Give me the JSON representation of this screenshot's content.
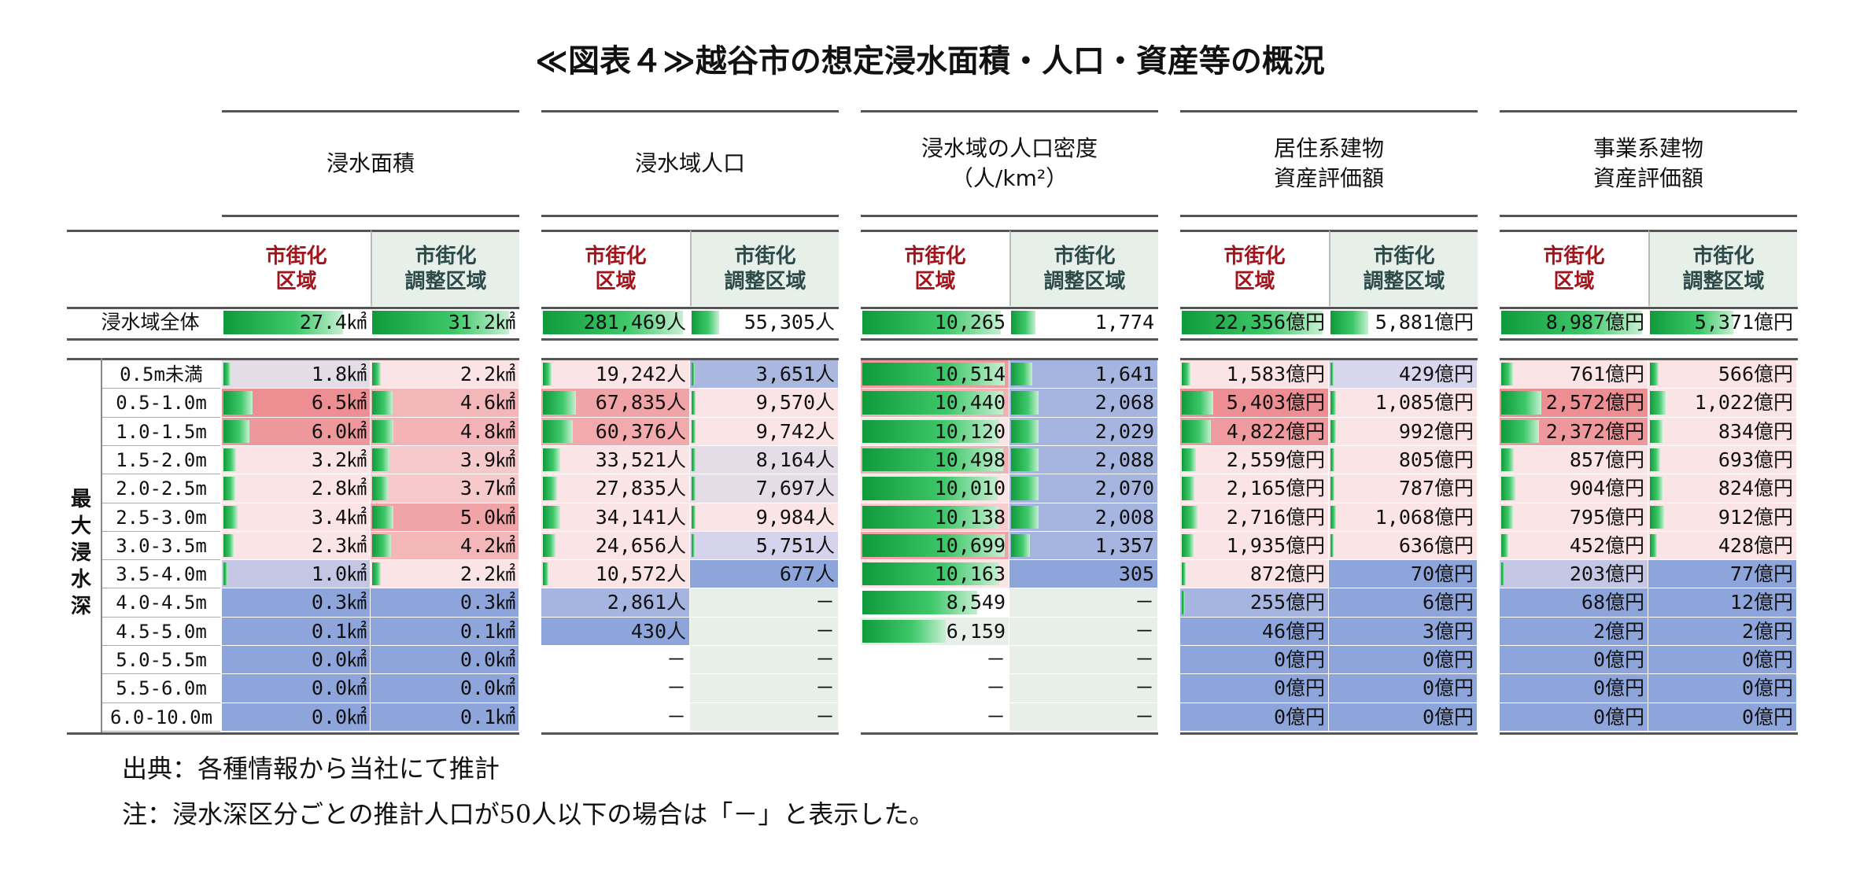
{
  "title": "≪図表４≫越谷市の想定浸水面積・人口・資産等の概況",
  "groups": [
    {
      "label": "浸水面積",
      "label2": ""
    },
    {
      "label": "浸水域人口",
      "label2": ""
    },
    {
      "label": "浸水域の人口密度",
      "label2": "（人/km²）"
    },
    {
      "label": "居住系建物",
      "label2": "資産評価額"
    },
    {
      "label": "事業系建物",
      "label2": "資産評価額"
    }
  ],
  "sub_headers": {
    "urban": [
      "市街化",
      "区域"
    ],
    "adjust": [
      "市街化",
      "調整区域"
    ]
  },
  "total_label": "浸水域全体",
  "vertical_label": "最大浸水深",
  "total_row": [
    {
      "v": "27.4㎢",
      "f": 0.83,
      "c": "#ffffff"
    },
    {
      "v": "31.2㎢",
      "f": 0.95,
      "c": "#ffffff"
    },
    {
      "v": "281,469人",
      "f": 0.97,
      "c": "#ffffff"
    },
    {
      "v": "55,305人",
      "f": 0.19,
      "c": "#ffffff"
    },
    {
      "v": "10,265",
      "f": 0.96,
      "c": "#ffffff"
    },
    {
      "v": "1,774",
      "f": 0.17,
      "c": "#ffffff"
    },
    {
      "v": "22,356億円",
      "f": 0.98,
      "c": "#ffffff"
    },
    {
      "v": "5,881億円",
      "f": 0.26,
      "c": "#ffffff"
    },
    {
      "v": "8,987億円",
      "f": 0.98,
      "c": "#ffffff"
    },
    {
      "v": "5,371億円",
      "f": 0.58,
      "c": "#ffffff"
    }
  ],
  "depth_rows": [
    {
      "label": "0.5m未満",
      "cells": [
        {
          "v": "1.8㎢",
          "f": 0.05,
          "c": "#e4dde8"
        },
        {
          "v": "2.2㎢",
          "f": 0.06,
          "c": "#fbe4e6"
        },
        {
          "v": "19,242人",
          "f": 0.06,
          "c": "#fbe4e6"
        },
        {
          "v": "3,651人",
          "f": 0.01,
          "c": "#aab8e0"
        },
        {
          "v": "10,514",
          "f": 0.99,
          "c": "#ef9a9e"
        },
        {
          "v": "1,641",
          "f": 0.15,
          "c": "#a6b4e0"
        },
        {
          "v": "1,583億円",
          "f": 0.06,
          "c": "#fbe4e6"
        },
        {
          "v": "429億円",
          "f": 0.02,
          "c": "#d8d6ec"
        },
        {
          "v": "761億円",
          "f": 0.08,
          "c": "#fbe4e6"
        },
        {
          "v": "566億円",
          "f": 0.06,
          "c": "#fbe4e6"
        }
      ]
    },
    {
      "label": "0.5-1.0m",
      "cells": [
        {
          "v": "6.5㎢",
          "f": 0.2,
          "c": "#ec8e92"
        },
        {
          "v": "4.6㎢",
          "f": 0.14,
          "c": "#f3b7ba"
        },
        {
          "v": "67,835人",
          "f": 0.23,
          "c": "#f0a4a7"
        },
        {
          "v": "9,570人",
          "f": 0.03,
          "c": "#fbe4e6"
        },
        {
          "v": "10,440",
          "f": 0.98,
          "c": "#f2b2b5"
        },
        {
          "v": "2,068",
          "f": 0.19,
          "c": "#a6b4e0"
        },
        {
          "v": "5,403億円",
          "f": 0.22,
          "c": "#ec8e92"
        },
        {
          "v": "1,085億円",
          "f": 0.04,
          "c": "#fbe4e6"
        },
        {
          "v": "2,572億円",
          "f": 0.28,
          "c": "#ec8e92"
        },
        {
          "v": "1,022億円",
          "f": 0.11,
          "c": "#fbe4e6"
        }
      ]
    },
    {
      "label": "1.0-1.5m",
      "cells": [
        {
          "v": "6.0㎢",
          "f": 0.18,
          "c": "#ee989c"
        },
        {
          "v": "4.8㎢",
          "f": 0.15,
          "c": "#f3b2b5"
        },
        {
          "v": "60,376人",
          "f": 0.21,
          "c": "#f2aaad"
        },
        {
          "v": "9,742人",
          "f": 0.03,
          "c": "#fbe4e6"
        },
        {
          "v": "10,120",
          "f": 0.95,
          "c": "#fbe4e6"
        },
        {
          "v": "2,029",
          "f": 0.19,
          "c": "#a6b4e0"
        },
        {
          "v": "4,822億円",
          "f": 0.2,
          "c": "#ef9a9e"
        },
        {
          "v": "992億円",
          "f": 0.04,
          "c": "#fbe4e6"
        },
        {
          "v": "2,372億円",
          "f": 0.26,
          "c": "#ee989c"
        },
        {
          "v": "834億円",
          "f": 0.09,
          "c": "#fbe4e6"
        }
      ]
    },
    {
      "label": "1.5-2.0m",
      "cells": [
        {
          "v": "3.2㎢",
          "f": 0.09,
          "c": "#fbe4e6"
        },
        {
          "v": "3.9㎢",
          "f": 0.12,
          "c": "#f6c9cb"
        },
        {
          "v": "33,521人",
          "f": 0.12,
          "c": "#fbe4e6"
        },
        {
          "v": "8,164人",
          "f": 0.03,
          "c": "#e4dde8"
        },
        {
          "v": "10,498",
          "f": 0.98,
          "c": "#f2b2b5"
        },
        {
          "v": "2,088",
          "f": 0.19,
          "c": "#a6b4e0"
        },
        {
          "v": "2,559億円",
          "f": 0.1,
          "c": "#fbe4e6"
        },
        {
          "v": "805億円",
          "f": 0.03,
          "c": "#fbe4e6"
        },
        {
          "v": "857億円",
          "f": 0.09,
          "c": "#fbe4e6"
        },
        {
          "v": "693億円",
          "f": 0.07,
          "c": "#fbe4e6"
        }
      ]
    },
    {
      "label": "2.0-2.5m",
      "cells": [
        {
          "v": "2.8㎢",
          "f": 0.08,
          "c": "#fbe4e6"
        },
        {
          "v": "3.7㎢",
          "f": 0.11,
          "c": "#f6c9cb"
        },
        {
          "v": "27,835人",
          "f": 0.1,
          "c": "#fbe4e6"
        },
        {
          "v": "7,697人",
          "f": 0.03,
          "c": "#e4dde8"
        },
        {
          "v": "10,010",
          "f": 0.94,
          "c": "#fbe4e6"
        },
        {
          "v": "2,070",
          "f": 0.19,
          "c": "#a6b4e0"
        },
        {
          "v": "2,165億円",
          "f": 0.09,
          "c": "#fbe4e6"
        },
        {
          "v": "787億円",
          "f": 0.03,
          "c": "#fbe4e6"
        },
        {
          "v": "904億円",
          "f": 0.1,
          "c": "#fbe4e6"
        },
        {
          "v": "824億円",
          "f": 0.09,
          "c": "#fbe4e6"
        }
      ]
    },
    {
      "label": "2.5-3.0m",
      "cells": [
        {
          "v": "3.4㎢",
          "f": 0.1,
          "c": "#fbe4e6"
        },
        {
          "v": "5.0㎢",
          "f": 0.15,
          "c": "#f0a4a7"
        },
        {
          "v": "34,141人",
          "f": 0.12,
          "c": "#fbe4e6"
        },
        {
          "v": "9,984人",
          "f": 0.03,
          "c": "#fbe4e6"
        },
        {
          "v": "10,138",
          "f": 0.95,
          "c": "#f7cdd0"
        },
        {
          "v": "2,008",
          "f": 0.19,
          "c": "#a6b4e0"
        },
        {
          "v": "2,716億円",
          "f": 0.11,
          "c": "#fbe4e6"
        },
        {
          "v": "1,068億円",
          "f": 0.04,
          "c": "#fbe4e6"
        },
        {
          "v": "795億円",
          "f": 0.08,
          "c": "#fbe4e6"
        },
        {
          "v": "912億円",
          "f": 0.1,
          "c": "#fbe4e6"
        }
      ]
    },
    {
      "label": "3.0-3.5m",
      "cells": [
        {
          "v": "2.3㎢",
          "f": 0.07,
          "c": "#fbe4e6"
        },
        {
          "v": "4.2㎢",
          "f": 0.13,
          "c": "#f3b7ba"
        },
        {
          "v": "24,656人",
          "f": 0.09,
          "c": "#fbe4e6"
        },
        {
          "v": "5,751人",
          "f": 0.02,
          "c": "#d6d4ec"
        },
        {
          "v": "10,699",
          "f": 0.99,
          "c": "#f0a4a7"
        },
        {
          "v": "1,357",
          "f": 0.13,
          "c": "#a6b4e0"
        },
        {
          "v": "1,935億円",
          "f": 0.08,
          "c": "#fbe4e6"
        },
        {
          "v": "636億円",
          "f": 0.02,
          "c": "#fbe4e6"
        },
        {
          "v": "452億円",
          "f": 0.05,
          "c": "#fbe4e6"
        },
        {
          "v": "428億円",
          "f": 0.05,
          "c": "#fbe4e6"
        }
      ]
    },
    {
      "label": "3.5-4.0m",
      "cells": [
        {
          "v": "1.0㎢",
          "f": 0.03,
          "c": "#c4c6e4"
        },
        {
          "v": "2.2㎢",
          "f": 0.06,
          "c": "#fbe4e6"
        },
        {
          "v": "10,572人",
          "f": 0.04,
          "c": "#fbe4e6"
        },
        {
          "v": "677人",
          "f": 0,
          "c": "#8ea5dc"
        },
        {
          "v": "10,163",
          "f": 0.95,
          "c": "#fbe4e6"
        },
        {
          "v": "305",
          "f": 0,
          "c": "#8ea5dc"
        },
        {
          "v": "872億円",
          "f": 0.03,
          "c": "#fbe4e6"
        },
        {
          "v": "70億円",
          "f": 0,
          "c": "#8ea5dc"
        },
        {
          "v": "203億円",
          "f": 0.02,
          "c": "#c4c6e4"
        },
        {
          "v": "77億円",
          "f": 0,
          "c": "#8ea5dc"
        }
      ]
    },
    {
      "label": "4.0-4.5m",
      "cells": [
        {
          "v": "0.3㎢",
          "f": 0,
          "c": "#8ea5dc"
        },
        {
          "v": "0.3㎢",
          "f": 0,
          "c": "#8ea5dc"
        },
        {
          "v": "2,861人",
          "f": 0,
          "c": "#a6b4e0"
        },
        {
          "v": "－",
          "f": 0,
          "c": "#e8efe9"
        },
        {
          "v": "8,549",
          "f": 0.8,
          "c": "#ffffff"
        },
        {
          "v": "－",
          "f": 0,
          "c": "#e8efe9"
        },
        {
          "v": "255億円",
          "f": 0.01,
          "c": "#a6b4e0"
        },
        {
          "v": "6億円",
          "f": 0,
          "c": "#8ea5dc"
        },
        {
          "v": "68億円",
          "f": 0,
          "c": "#8ea5dc"
        },
        {
          "v": "12億円",
          "f": 0,
          "c": "#8ea5dc"
        }
      ]
    },
    {
      "label": "4.5-5.0m",
      "cells": [
        {
          "v": "0.1㎢",
          "f": 0,
          "c": "#8ea5dc"
        },
        {
          "v": "0.1㎢",
          "f": 0,
          "c": "#8ea5dc"
        },
        {
          "v": "430人",
          "f": 0,
          "c": "#8ea5dc"
        },
        {
          "v": "－",
          "f": 0,
          "c": "#e8efe9"
        },
        {
          "v": "6,159",
          "f": 0.58,
          "c": "#e8efe9"
        },
        {
          "v": "－",
          "f": 0,
          "c": "#e8efe9"
        },
        {
          "v": "46億円",
          "f": 0,
          "c": "#8ea5dc"
        },
        {
          "v": "3億円",
          "f": 0,
          "c": "#8ea5dc"
        },
        {
          "v": "2億円",
          "f": 0,
          "c": "#8ea5dc"
        },
        {
          "v": "2億円",
          "f": 0,
          "c": "#8ea5dc"
        }
      ]
    },
    {
      "label": "5.0-5.5m",
      "cells": [
        {
          "v": "0.0㎢",
          "f": 0,
          "c": "#8ea5dc"
        },
        {
          "v": "0.0㎢",
          "f": 0,
          "c": "#8ea5dc"
        },
        {
          "v": "－",
          "f": 0,
          "c": "#ffffff"
        },
        {
          "v": "－",
          "f": 0,
          "c": "#e8efe9"
        },
        {
          "v": "－",
          "f": 0,
          "c": "#ffffff"
        },
        {
          "v": "－",
          "f": 0,
          "c": "#e8efe9"
        },
        {
          "v": "0億円",
          "f": 0,
          "c": "#8ea5dc"
        },
        {
          "v": "0億円",
          "f": 0,
          "c": "#8ea5dc"
        },
        {
          "v": "0億円",
          "f": 0,
          "c": "#8ea5dc"
        },
        {
          "v": "0億円",
          "f": 0,
          "c": "#8ea5dc"
        }
      ]
    },
    {
      "label": "5.5-6.0m",
      "cells": [
        {
          "v": "0.0㎢",
          "f": 0,
          "c": "#8ea5dc"
        },
        {
          "v": "0.0㎢",
          "f": 0,
          "c": "#8ea5dc"
        },
        {
          "v": "－",
          "f": 0,
          "c": "#ffffff"
        },
        {
          "v": "－",
          "f": 0,
          "c": "#e8efe9"
        },
        {
          "v": "－",
          "f": 0,
          "c": "#ffffff"
        },
        {
          "v": "－",
          "f": 0,
          "c": "#e8efe9"
        },
        {
          "v": "0億円",
          "f": 0,
          "c": "#8ea5dc"
        },
        {
          "v": "0億円",
          "f": 0,
          "c": "#8ea5dc"
        },
        {
          "v": "0億円",
          "f": 0,
          "c": "#8ea5dc"
        },
        {
          "v": "0億円",
          "f": 0,
          "c": "#8ea5dc"
        }
      ]
    },
    {
      "label": "6.0-10.0m",
      "cells": [
        {
          "v": "0.0㎢",
          "f": 0,
          "c": "#8ea5dc"
        },
        {
          "v": "0.1㎢",
          "f": 0,
          "c": "#8ea5dc"
        },
        {
          "v": "－",
          "f": 0,
          "c": "#ffffff"
        },
        {
          "v": "－",
          "f": 0,
          "c": "#e8efe9"
        },
        {
          "v": "－",
          "f": 0,
          "c": "#ffffff"
        },
        {
          "v": "－",
          "f": 0,
          "c": "#e8efe9"
        },
        {
          "v": "0億円",
          "f": 0,
          "c": "#8ea5dc"
        },
        {
          "v": "0億円",
          "f": 0,
          "c": "#8ea5dc"
        },
        {
          "v": "0億円",
          "f": 0,
          "c": "#8ea5dc"
        },
        {
          "v": "0億円",
          "f": 0,
          "c": "#8ea5dc"
        }
      ]
    }
  ],
  "notes": {
    "source": "出典：各種情報から当社にて推計",
    "note": "注：浸水深区分ごとの推計人口が50人以下の場合は「－」と表示した。"
  }
}
